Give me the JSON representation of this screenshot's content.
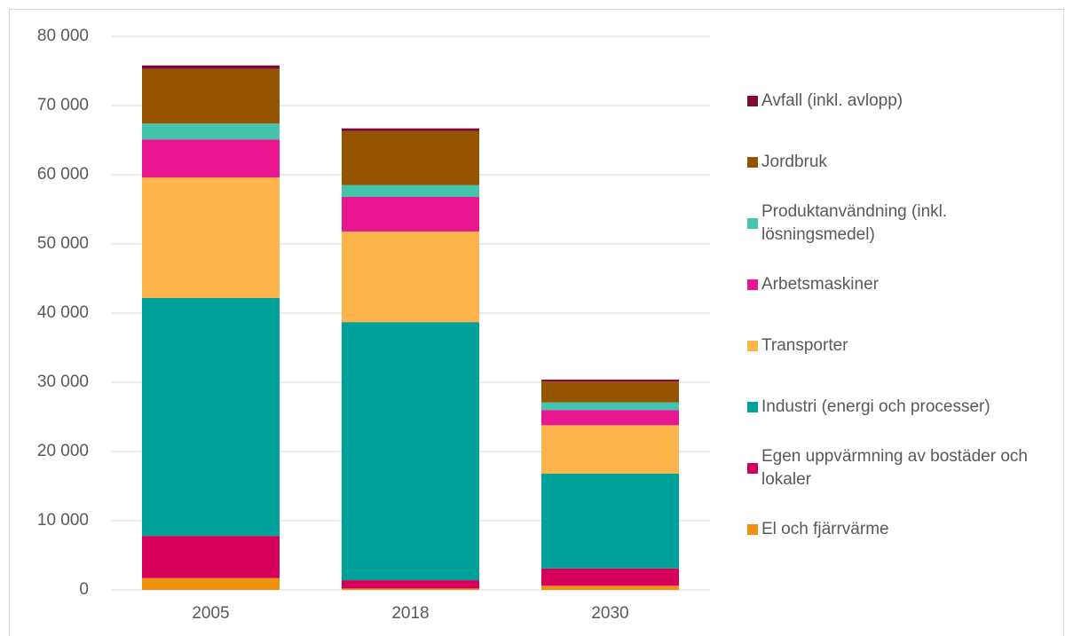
{
  "chart_data": {
    "type": "stacked_bar",
    "categories": [
      "2005",
      "2018",
      "2030"
    ],
    "series": [
      {
        "name": "El och fjärrvärme",
        "color": "#f0900f",
        "values": [
          1700,
          200,
          600
        ]
      },
      {
        "name": "Egen uppvärmning av bostäder och lokaler",
        "color": "#d6005a",
        "values": [
          6100,
          1200,
          2500
        ]
      },
      {
        "name": "Industri (energi och processer)",
        "color": "#00a19a",
        "values": [
          34400,
          37300,
          13700
        ]
      },
      {
        "name": "Transporter",
        "color": "#fdb44a",
        "values": [
          17400,
          13100,
          7000
        ]
      },
      {
        "name": "Arbetsmaskiner",
        "color": "#e8178f",
        "values": [
          5500,
          5000,
          2200
        ]
      },
      {
        "name": "Produktanvändning (inkl. lösningsmedel)",
        "color": "#44c4ad",
        "values": [
          2300,
          1700,
          1100
        ]
      },
      {
        "name": "Jordbruk",
        "color": "#945400",
        "values": [
          7900,
          7800,
          3000
        ]
      },
      {
        "name": "Avfall (inkl. avlopp)",
        "color": "#7f0a3a",
        "values": [
          500,
          400,
          300
        ]
      }
    ],
    "ylim": [
      0,
      80000
    ],
    "yticks": [
      0,
      {
        "value": 10000,
        "label": "10 000"
      },
      {
        "value": 20000,
        "label": "20 000"
      },
      {
        "value": 30000,
        "label": "30 000"
      },
      {
        "value": 40000,
        "label": "40 000"
      },
      {
        "value": 50000,
        "label": "50 000"
      },
      {
        "value": 60000,
        "label": "60 000"
      },
      {
        "value": 70000,
        "label": "70 000"
      },
      {
        "value": 80000,
        "label": "80 000"
      }
    ],
    "grid": true
  }
}
